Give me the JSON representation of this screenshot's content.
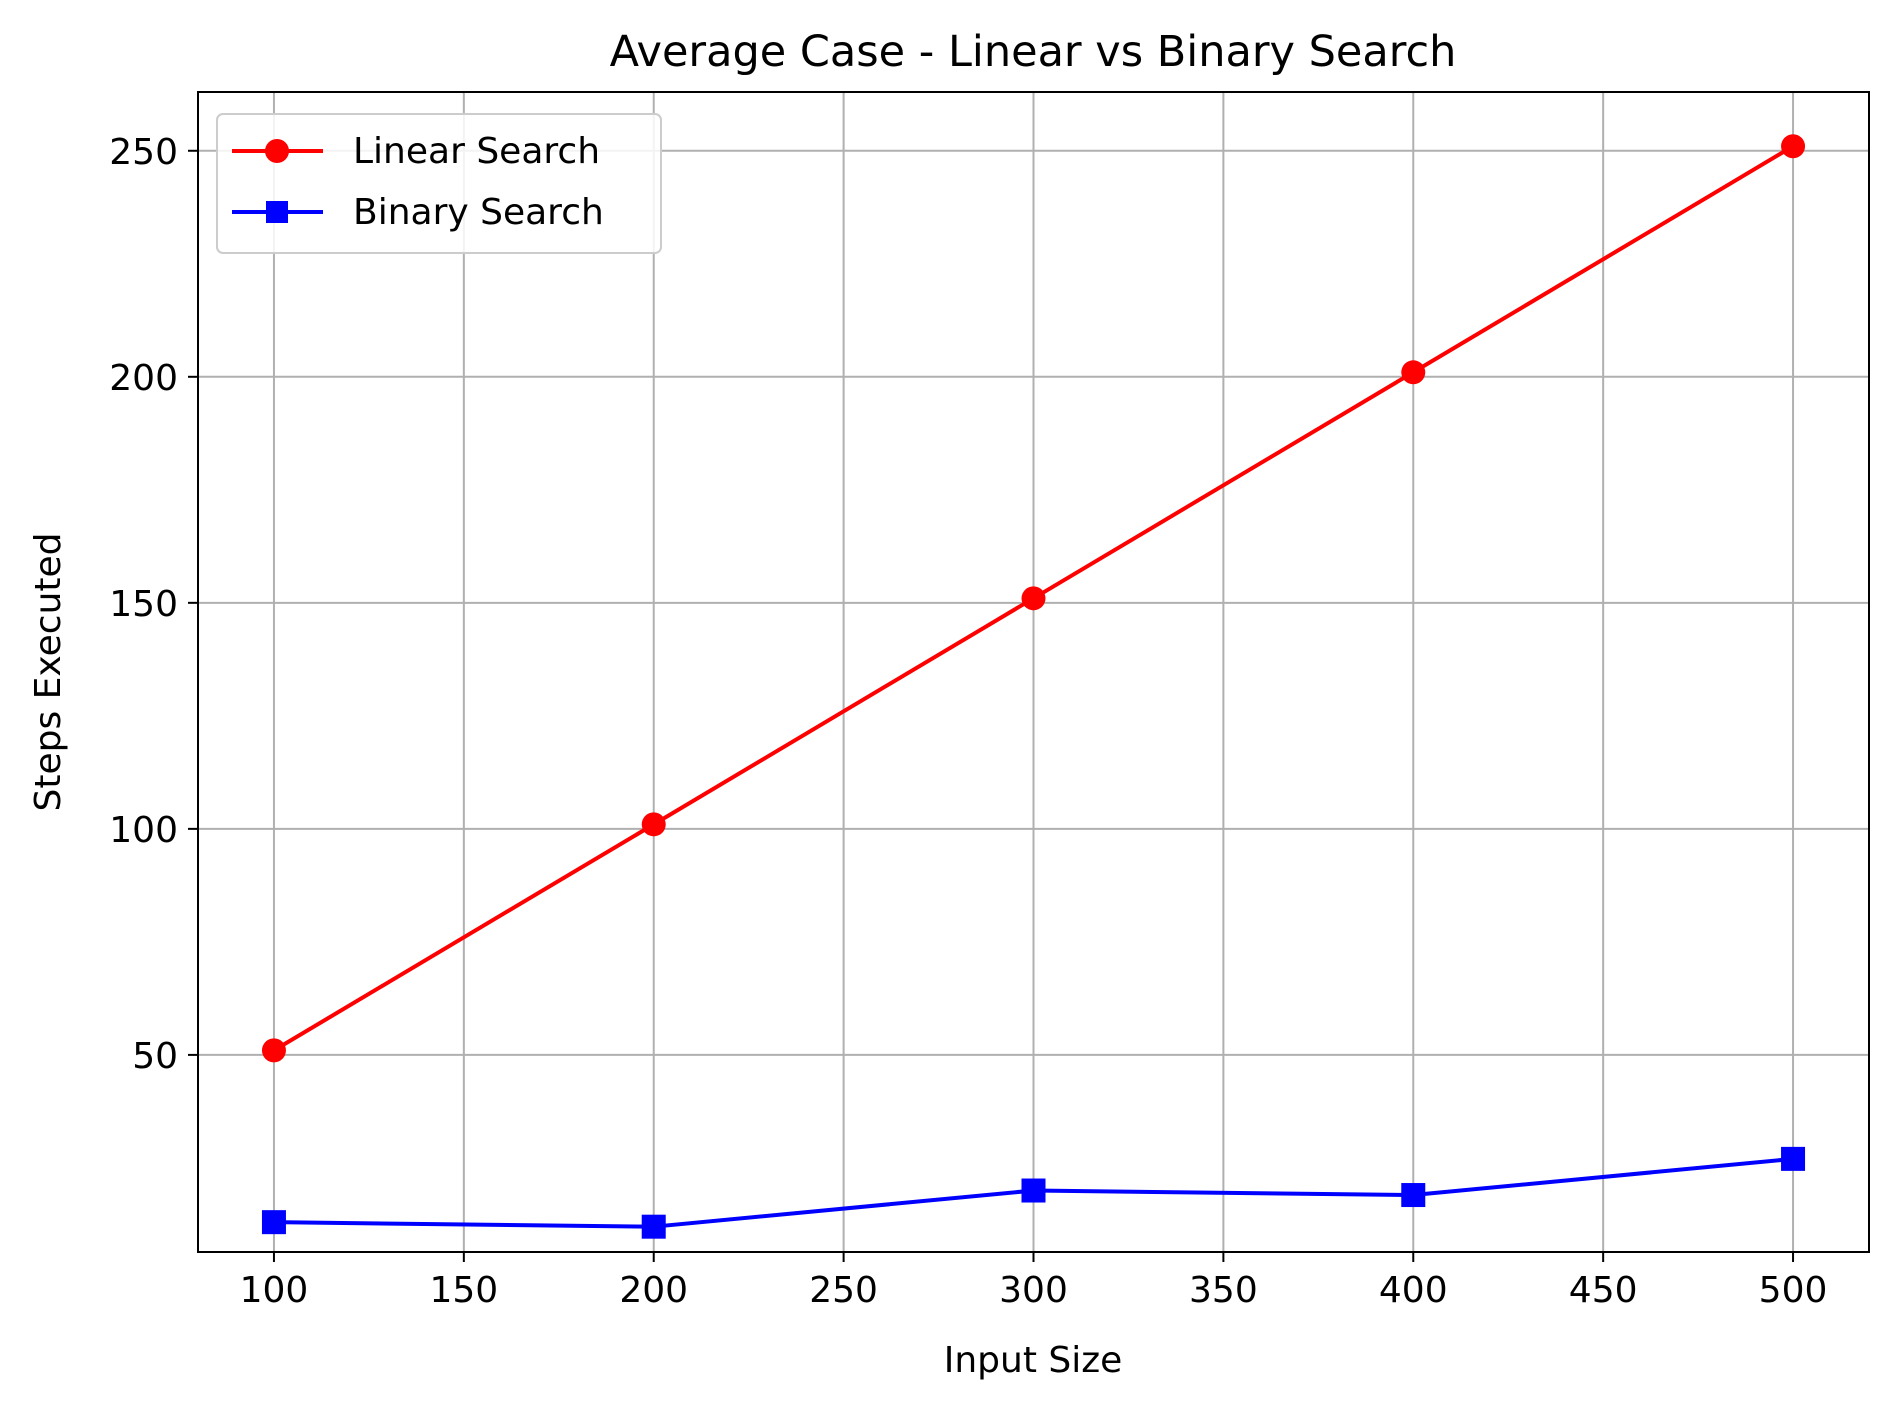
{
  "chart_data": {
    "type": "line",
    "title": "Average Case - Linear vs Binary Search",
    "xlabel": "Input Size",
    "ylabel": "Steps Executed",
    "x": [
      100,
      200,
      300,
      400,
      500
    ],
    "xlim": [
      80,
      520
    ],
    "ylim": [
      6.4,
      263
    ],
    "xticks": [
      100,
      150,
      200,
      250,
      300,
      350,
      400,
      450,
      500
    ],
    "yticks": [
      50,
      100,
      150,
      200,
      250
    ],
    "grid": true,
    "legend_position": "top-left",
    "series": [
      {
        "name": "Linear Search",
        "values": [
          51,
          101,
          151,
          201,
          251
        ],
        "color": "#ff0000",
        "marker": "circle"
      },
      {
        "name": "Binary Search",
        "values": [
          13,
          12,
          20,
          19,
          27
        ],
        "color": "#0000ff",
        "marker": "square"
      }
    ],
    "colors": {
      "grid": "#b0b0b0",
      "axes": "#000000",
      "legend_border": "#cccccc"
    }
  }
}
